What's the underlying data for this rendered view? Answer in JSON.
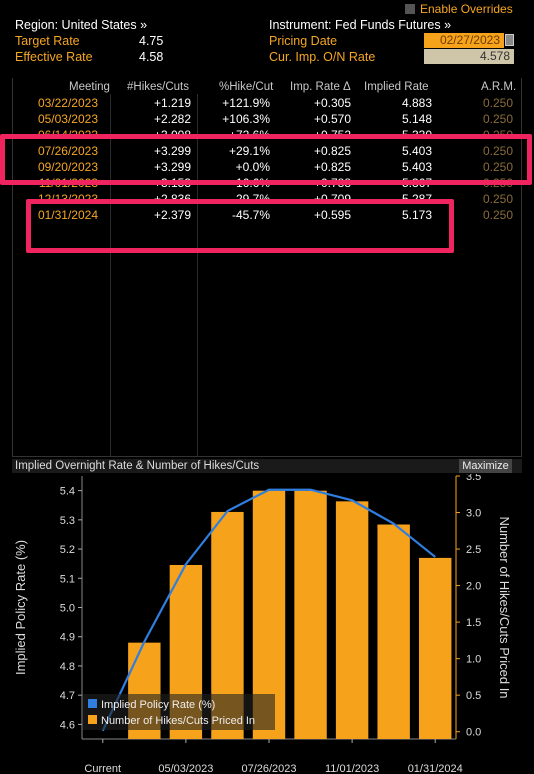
{
  "top_right": {
    "enable_overrides": "Enable Overrides"
  },
  "header": {
    "region_label": "Region: United States »",
    "instrument_label": "Instrument: Fed Funds Futures »",
    "target_rate_label": "Target Rate",
    "target_rate_value": "4.75",
    "effective_rate_label": "Effective Rate",
    "effective_rate_value": "4.58",
    "pricing_date_label": "Pricing Date",
    "pricing_date_value": "02/27/2023",
    "cur_imp_label": "Cur. Imp. O/N Rate",
    "cur_imp_value": "4.578"
  },
  "table": {
    "columns": [
      "Meeting",
      "#Hikes/Cuts",
      "%Hike/Cut",
      "Imp. Rate Δ",
      "Implied Rate",
      "A.R.M."
    ],
    "rows": [
      {
        "meeting": "03/22/2023",
        "hikes": "+1.219",
        "pct": "+121.9%",
        "imp_delta": "+0.305",
        "implied": "4.883",
        "arm": "0.250"
      },
      {
        "meeting": "05/03/2023",
        "hikes": "+2.282",
        "pct": "+106.3%",
        "imp_delta": "+0.570",
        "implied": "5.148",
        "arm": "0.250"
      },
      {
        "meeting": "06/14/2023",
        "hikes": "+3.008",
        "pct": "+72.6%",
        "imp_delta": "+0.752",
        "implied": "5.330",
        "arm": "0.250"
      },
      {
        "meeting": "07/26/2023",
        "hikes": "+3.299",
        "pct": "+29.1%",
        "imp_delta": "+0.825",
        "implied": "5.403",
        "arm": "0.250"
      },
      {
        "meeting": "09/20/2023",
        "hikes": "+3.299",
        "pct": "+0.0%",
        "imp_delta": "+0.825",
        "implied": "5.403",
        "arm": "0.250"
      },
      {
        "meeting": "11/01/2023",
        "hikes": "+3.153",
        "pct": "-16.6%",
        "imp_delta": "+0.788",
        "implied": "5.367",
        "arm": "0.250"
      },
      {
        "meeting": "12/13/2023",
        "hikes": "+2.836",
        "pct": "-29.7%",
        "imp_delta": "+0.709",
        "implied": "5.287",
        "arm": "0.250"
      },
      {
        "meeting": "01/31/2024",
        "hikes": "+2.379",
        "pct": "-45.7%",
        "imp_delta": "+0.595",
        "implied": "5.173",
        "arm": "0.250"
      }
    ]
  },
  "chart_panel": {
    "title": "Implied Overnight Rate & Number of Hikes/Cuts",
    "maximize_label": "Maximize"
  },
  "chart_data": {
    "type": "bar",
    "x": [
      "Current",
      "03/22/2023",
      "05/03/2023",
      "06/14/2023",
      "07/26/2023",
      "09/20/2023",
      "11/01/2023",
      "12/13/2023",
      "01/31/2024"
    ],
    "x_tick_labels": [
      "Current",
      "05/03/2023",
      "07/26/2023",
      "11/01/2023",
      "01/31/2024"
    ],
    "series": [
      {
        "name": "Implied Policy Rate (%)",
        "type": "line",
        "axis": "left",
        "color": "#2f7ee0",
        "values": [
          4.578,
          4.883,
          5.148,
          5.33,
          5.403,
          5.403,
          5.367,
          5.287,
          5.173
        ]
      },
      {
        "name": "Number of Hikes/Cuts Priced In",
        "type": "bar",
        "axis": "right",
        "color": "#f7a21b",
        "values": [
          null,
          1.219,
          2.282,
          3.008,
          3.299,
          3.299,
          3.153,
          2.836,
          2.379
        ]
      }
    ],
    "ylabel_left": "Implied Policy Rate (%)",
    "ylabel_right": "Number of Hikes/Cuts Priced In",
    "ylim_left": [
      4.55,
      5.45
    ],
    "ylim_right": [
      -0.1,
      3.5
    ],
    "yticks_left": [
      "4.6",
      "4.7",
      "4.8",
      "4.9",
      "5.0",
      "5.1",
      "5.2",
      "5.3",
      "5.4"
    ],
    "yticks_right": [
      "0.0",
      "0.5",
      "1.0",
      "1.5",
      "2.0",
      "2.5",
      "3.0",
      "3.5"
    ],
    "legend_position": "bottom-left",
    "grid": false
  }
}
